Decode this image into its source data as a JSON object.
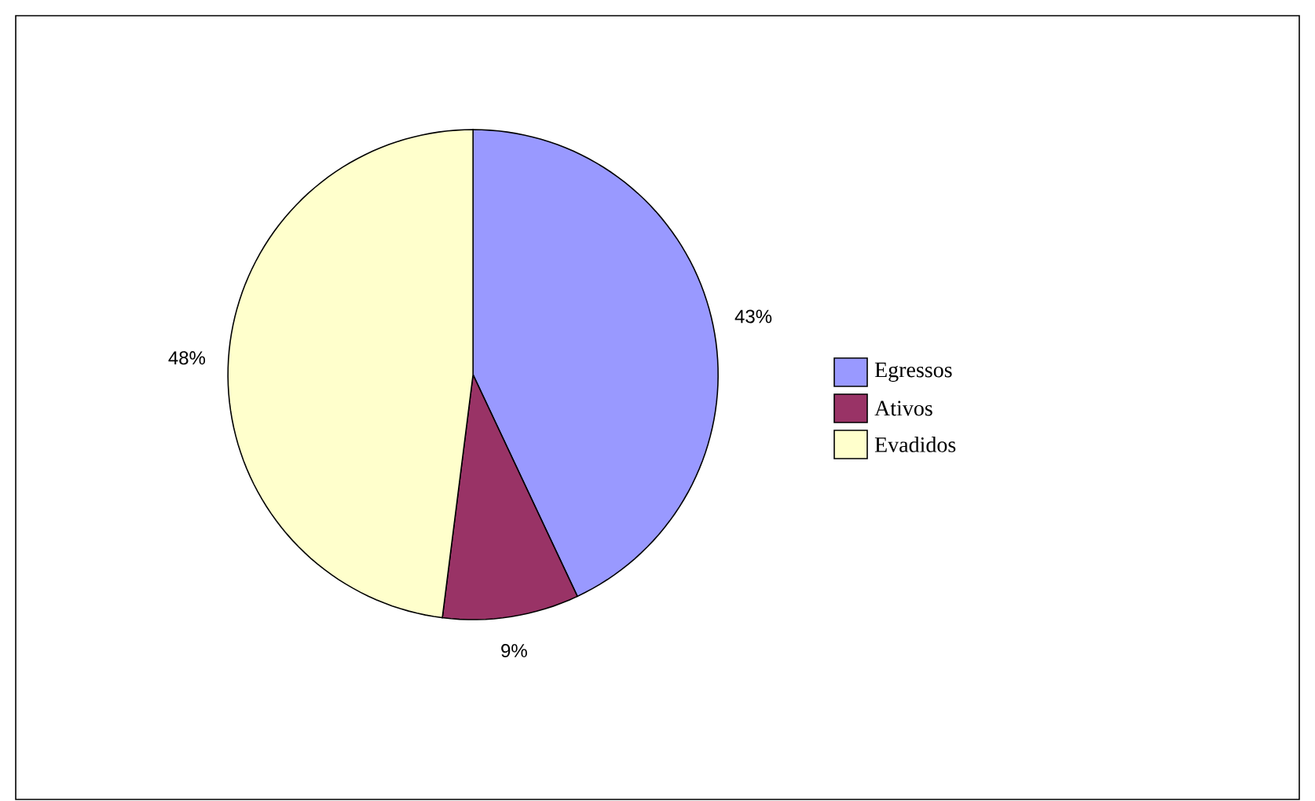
{
  "chart_data": {
    "type": "pie",
    "categories": [
      "Egressos",
      "Ativos",
      "Evadidos"
    ],
    "values": [
      43,
      9,
      48
    ],
    "colors": [
      "#9999ff",
      "#993366",
      "#ffffcc"
    ],
    "value_labels": [
      "43%",
      "9%",
      "48%"
    ],
    "legend": "right"
  }
}
